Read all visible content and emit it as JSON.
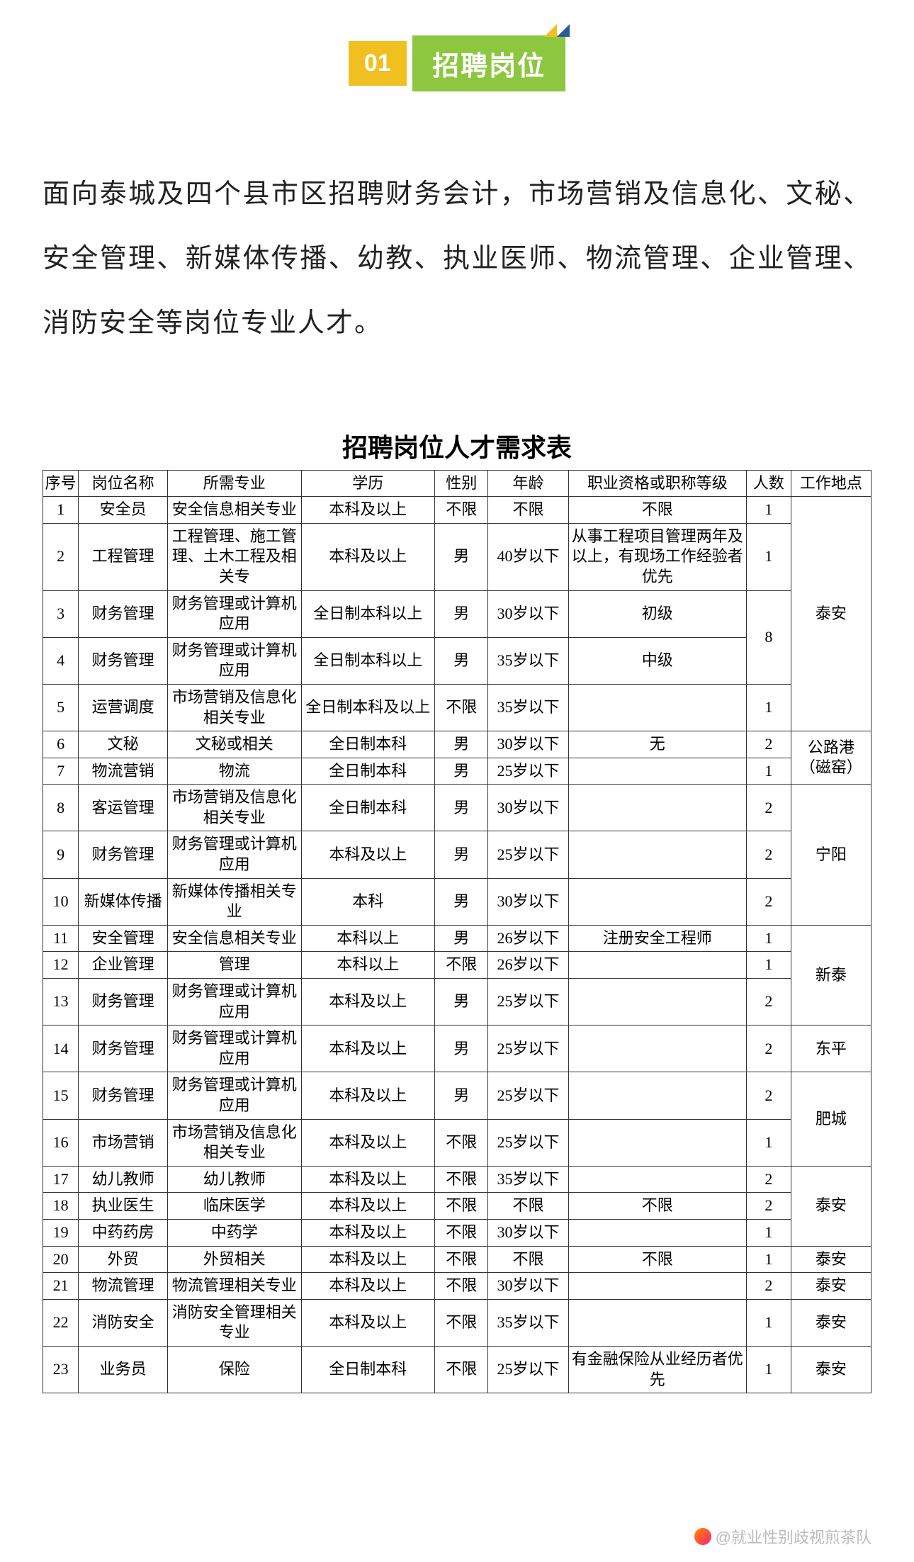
{
  "header": {
    "number": "01",
    "title": "招聘岗位"
  },
  "intro": "面向泰城及四个县市区招聘财务会计，市场营销及信息化、文秘、安全管理、新媒体传播、幼教、执业医师、物流管理、企业管理、消防安全等岗位专业人才。",
  "table": {
    "title": "招聘岗位人才需求表",
    "columns": [
      "序号",
      "岗位名称",
      "所需专业",
      "学历",
      "性别",
      "年龄",
      "职业资格或职称等级",
      "人数",
      "工作地点"
    ],
    "rows": [
      {
        "idx": "1",
        "pos": "安全员",
        "maj": "安全信息相关专业",
        "edu": "本科及以上",
        "gen": "不限",
        "age": "不限",
        "qua": "不限",
        "cnt": "1",
        "loc": "泰安",
        "locspan": 5
      },
      {
        "idx": "2",
        "pos": "工程管理",
        "maj": "工程管理、施工管理、土木工程及相关专",
        "edu": "本科及以上",
        "gen": "男",
        "age": "40岁以下",
        "qua": "从事工程项目管理两年及以上，有现场工作经验者优先",
        "cnt": "1"
      },
      {
        "idx": "3",
        "pos": "财务管理",
        "maj": "财务管理或计算机应用",
        "edu": "全日制本科以上",
        "gen": "男",
        "age": "30岁以下",
        "qua": "初级",
        "cnt": "8",
        "cntspan": 2
      },
      {
        "idx": "4",
        "pos": "财务管理",
        "maj": "财务管理或计算机应用",
        "edu": "全日制本科以上",
        "gen": "男",
        "age": "35岁以下",
        "qua": "中级"
      },
      {
        "idx": "5",
        "pos": "运营调度",
        "maj": "市场营销及信息化相关专业",
        "edu": "全日制本科及以上",
        "gen": "不限",
        "age": "35岁以下",
        "qua": "",
        "cnt": "1"
      },
      {
        "idx": "6",
        "pos": "文秘",
        "maj": "文秘或相关",
        "edu": "全日制本科",
        "gen": "男",
        "age": "30岁以下",
        "qua": "无",
        "cnt": "2",
        "loc": "公路港（磁窑）",
        "locspan": 2
      },
      {
        "idx": "7",
        "pos": "物流营销",
        "maj": "物流",
        "edu": "全日制本科",
        "gen": "男",
        "age": "25岁以下",
        "qua": "",
        "cnt": "1"
      },
      {
        "idx": "8",
        "pos": "客运管理",
        "maj": "市场营销及信息化相关专业",
        "edu": "全日制本科",
        "gen": "男",
        "age": "30岁以下",
        "qua": "",
        "cnt": "2",
        "loc": "宁阳",
        "locspan": 3
      },
      {
        "idx": "9",
        "pos": "财务管理",
        "maj": "财务管理或计算机应用",
        "edu": "本科及以上",
        "gen": "男",
        "age": "25岁以下",
        "qua": "",
        "cnt": "2"
      },
      {
        "idx": "10",
        "pos": "新媒体传播",
        "maj": "新媒体传播相关专业",
        "edu": "本科",
        "gen": "男",
        "age": "30岁以下",
        "qua": "",
        "cnt": "2"
      },
      {
        "idx": "11",
        "pos": "安全管理",
        "maj": "安全信息相关专业",
        "edu": "本科以上",
        "gen": "男",
        "age": "26岁以下",
        "qua": "注册安全工程师",
        "cnt": "1",
        "loc": "新泰",
        "locspan": 3
      },
      {
        "idx": "12",
        "pos": "企业管理",
        "maj": "管理",
        "edu": "本科以上",
        "gen": "不限",
        "age": "26岁以下",
        "qua": "",
        "cnt": "1"
      },
      {
        "idx": "13",
        "pos": "财务管理",
        "maj": "财务管理或计算机应用",
        "edu": "本科及以上",
        "gen": "男",
        "age": "25岁以下",
        "qua": "",
        "cnt": "2"
      },
      {
        "idx": "14",
        "pos": "财务管理",
        "maj": "财务管理或计算机应用",
        "edu": "本科及以上",
        "gen": "男",
        "age": "25岁以下",
        "qua": "",
        "cnt": "2",
        "loc": "东平",
        "locspan": 1
      },
      {
        "idx": "15",
        "pos": "财务管理",
        "maj": "财务管理或计算机应用",
        "edu": "本科及以上",
        "gen": "男",
        "age": "25岁以下",
        "qua": "",
        "cnt": "2",
        "loc": "肥城",
        "locspan": 2
      },
      {
        "idx": "16",
        "pos": "市场营销",
        "maj": "市场营销及信息化相关专业",
        "edu": "本科及以上",
        "gen": "不限",
        "age": "25岁以下",
        "qua": "",
        "cnt": "1"
      },
      {
        "idx": "17",
        "pos": "幼儿教师",
        "maj": "幼儿教师",
        "edu": "本科及以上",
        "gen": "不限",
        "age": "35岁以下",
        "qua": "",
        "cnt": "2",
        "loc": "泰安",
        "locspan": 3
      },
      {
        "idx": "18",
        "pos": "执业医生",
        "maj": "临床医学",
        "edu": "本科及以上",
        "gen": "不限",
        "age": "不限",
        "qua": "不限",
        "cnt": "2"
      },
      {
        "idx": "19",
        "pos": "中药药房",
        "maj": "中药学",
        "edu": "本科及以上",
        "gen": "不限",
        "age": "30岁以下",
        "qua": "",
        "cnt": "1"
      },
      {
        "idx": "20",
        "pos": "外贸",
        "maj": "外贸相关",
        "edu": "本科及以上",
        "gen": "不限",
        "age": "不限",
        "qua": "不限",
        "cnt": "1",
        "loc": "泰安",
        "locspan": 1
      },
      {
        "idx": "21",
        "pos": "物流管理",
        "maj": "物流管理相关专业",
        "edu": "本科及以上",
        "gen": "不限",
        "age": "30岁以下",
        "qua": "",
        "cnt": "2",
        "loc": "泰安",
        "locspan": 1
      },
      {
        "idx": "22",
        "pos": "消防安全",
        "maj": "消防安全管理相关专业",
        "edu": "本科及以上",
        "gen": "不限",
        "age": "35岁以下",
        "qua": "",
        "cnt": "1",
        "loc": "泰安",
        "locspan": 1
      },
      {
        "idx": "23",
        "pos": "业务员",
        "maj": "保险",
        "edu": "全日制本科",
        "gen": "不限",
        "age": "25岁以下",
        "qua": "有金融保险从业经历者优先",
        "cnt": "1",
        "loc": "泰安",
        "locspan": 1
      }
    ]
  },
  "watermark": "@就业性别歧视煎茶队"
}
